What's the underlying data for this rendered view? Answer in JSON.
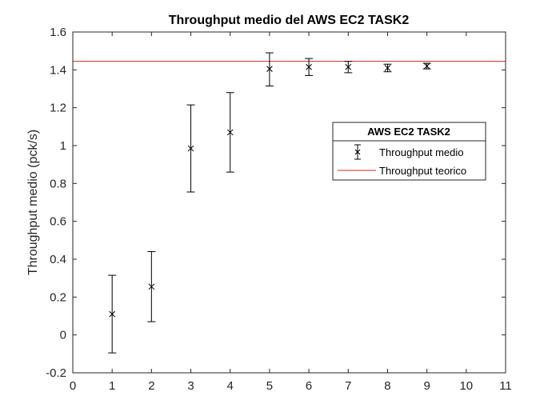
{
  "chart_data": {
    "type": "scatter",
    "title": "Throughput medio del AWS EC2 TASK2",
    "xlabel": "",
    "ylabel": "Throughput medio (pck/s)",
    "xlim": [
      0,
      11
    ],
    "ylim": [
      -0.2,
      1.6
    ],
    "xticks": [
      "0",
      "1",
      "2",
      "3",
      "4",
      "5",
      "6",
      "7",
      "8",
      "9",
      "10",
      "11"
    ],
    "yticks": [
      "-0.2",
      "0",
      "0.2",
      "0.4",
      "0.6",
      "0.8",
      "1",
      "1.2",
      "1.4",
      "1.6"
    ],
    "grid": false,
    "legend": {
      "title": "AWS EC2 TASK2",
      "position": "right"
    },
    "series": [
      {
        "name": "Throughput medio",
        "marker": "x",
        "color": "#000000",
        "x": [
          1,
          2,
          3,
          4,
          5,
          6,
          7,
          8,
          9
        ],
        "y": [
          0.11,
          0.255,
          0.985,
          1.07,
          1.405,
          1.415,
          1.415,
          1.41,
          1.42
        ],
        "err_low": [
          -0.095,
          0.07,
          0.755,
          0.86,
          1.315,
          1.37,
          1.385,
          1.39,
          1.405
        ],
        "err_high": [
          0.315,
          0.44,
          1.215,
          1.28,
          1.49,
          1.46,
          1.445,
          1.43,
          1.435
        ]
      },
      {
        "name": "Throughput teorico",
        "type": "hline",
        "color": "#d62728",
        "y": 1.445
      }
    ]
  }
}
